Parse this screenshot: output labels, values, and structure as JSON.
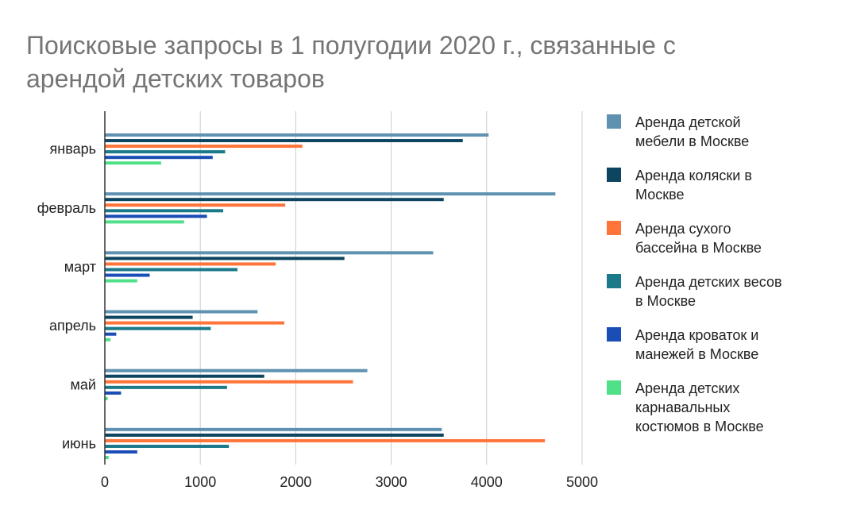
{
  "chart_data": {
    "type": "bar",
    "orientation": "horizontal",
    "title_lines": [
      "Поисковые запросы в 1 полугодии 2020 г., связанные с",
      "арендой детских товаров"
    ],
    "categories": [
      "январь",
      "февраль",
      "март",
      "апрель",
      "май",
      "июнь"
    ],
    "xlim": [
      0,
      5000
    ],
    "xticks": [
      "0",
      "1000",
      "2000",
      "3000",
      "4000",
      "5000"
    ],
    "grid": true,
    "legend_position": "right",
    "series": [
      {
        "name_lines": [
          "Аренда детской",
          "мебели в Москве"
        ],
        "color": "#5e92b0",
        "values": [
          4020,
          4720,
          3440,
          1600,
          2750,
          3530
        ]
      },
      {
        "name_lines": [
          "Аренда коляски в",
          "Москве"
        ],
        "color": "#0d4560",
        "values": [
          3750,
          3550,
          2510,
          920,
          1670,
          3550
        ]
      },
      {
        "name_lines": [
          "Аренда сухого",
          "бассейна в Москве"
        ],
        "color": "#ff7439",
        "values": [
          2070,
          1890,
          1790,
          1880,
          2600,
          4610
        ]
      },
      {
        "name_lines": [
          "Аренда детских весов",
          "в Москве"
        ],
        "color": "#1b7a8a",
        "values": [
          1260,
          1240,
          1390,
          1110,
          1280,
          1300
        ]
      },
      {
        "name_lines": [
          "Аренда кроваток и",
          "манежей в Москве"
        ],
        "color": "#1a4db5",
        "values": [
          1130,
          1070,
          470,
          120,
          170,
          340
        ]
      },
      {
        "name_lines": [
          "Аренда детских",
          "карнавальных",
          "костюмов в Москве"
        ],
        "color": "#4fe088",
        "values": [
          590,
          830,
          340,
          60,
          30,
          40
        ]
      }
    ]
  }
}
